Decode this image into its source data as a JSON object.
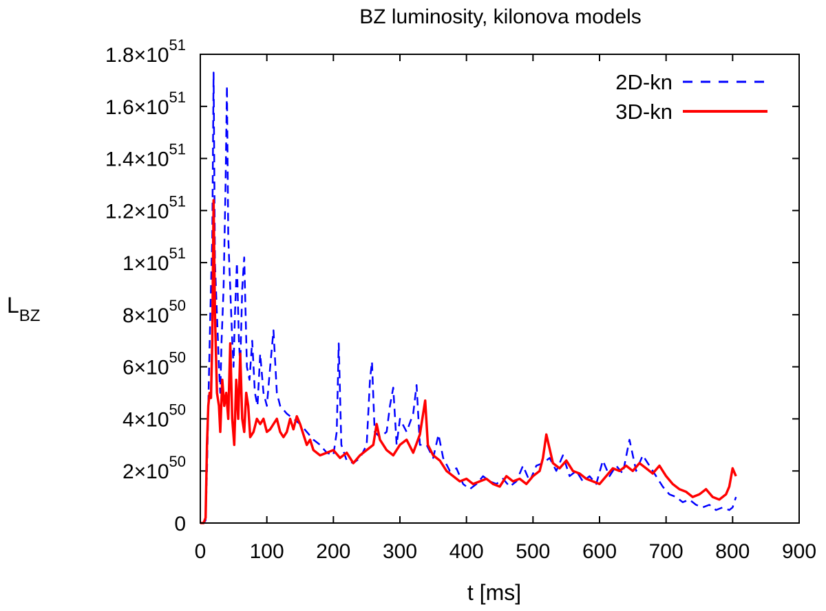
{
  "chart_data": {
    "type": "line",
    "title": "BZ luminosity, kilonova models",
    "xlabel": "t [ms]",
    "ylabel_main": "L",
    "ylabel_sub": "BZ",
    "xlim": [
      0,
      900
    ],
    "ylim": [
      0,
      1.8e+51
    ],
    "xticks": [
      0,
      100,
      200,
      300,
      400,
      500,
      600,
      700,
      800,
      900
    ],
    "xtick_labels": [
      "0",
      "100",
      "200",
      "300",
      "400",
      "500",
      "600",
      "700",
      "800",
      "900"
    ],
    "yticks": [
      {
        "value": 0,
        "mantissa": "0",
        "exponent": ""
      },
      {
        "value": 2e+50,
        "mantissa": "2×10",
        "exponent": "50"
      },
      {
        "value": 4e+50,
        "mantissa": "4×10",
        "exponent": "50"
      },
      {
        "value": 6e+50,
        "mantissa": "6×10",
        "exponent": "50"
      },
      {
        "value": 8e+50,
        "mantissa": "8×10",
        "exponent": "50"
      },
      {
        "value": 1e+51,
        "mantissa": "1×10",
        "exponent": "51"
      },
      {
        "value": 1.2e+51,
        "mantissa": "1.2×10",
        "exponent": "51"
      },
      {
        "value": 1.4e+51,
        "mantissa": "1.4×10",
        "exponent": "51"
      },
      {
        "value": 1.6e+51,
        "mantissa": "1.6×10",
        "exponent": "51"
      },
      {
        "value": 1.8e+51,
        "mantissa": "1.8×10",
        "exponent": "51"
      }
    ],
    "grid": false,
    "legend_position": "top-right",
    "series": [
      {
        "name": "2D-kn",
        "color": "#0000ff",
        "style": "dashed",
        "x": [
          0,
          5,
          8,
          10,
          12,
          15,
          18,
          20,
          22,
          25,
          28,
          30,
          32,
          35,
          38,
          40,
          42,
          45,
          48,
          50,
          52,
          55,
          58,
          60,
          63,
          66,
          70,
          74,
          78,
          82,
          86,
          90,
          95,
          100,
          105,
          110,
          115,
          120,
          130,
          140,
          150,
          160,
          170,
          180,
          190,
          200,
          205,
          208,
          212,
          220,
          230,
          240,
          250,
          255,
          258,
          262,
          270,
          280,
          285,
          290,
          295,
          300,
          310,
          320,
          325,
          330,
          340,
          350,
          358,
          365,
          375,
          385,
          395,
          405,
          415,
          425,
          435,
          445,
          455,
          465,
          475,
          485,
          495,
          505,
          515,
          525,
          535,
          545,
          555,
          565,
          575,
          585,
          595,
          605,
          615,
          625,
          635,
          645,
          655,
          665,
          675,
          685,
          695,
          705,
          715,
          725,
          735,
          745,
          755,
          765,
          775,
          785,
          795,
          800,
          805
        ],
        "y": [
          0,
          0,
          1e+49,
          2e+50,
          4.5e+50,
          8e+50,
          1.1e+51,
          1.73e+51,
          1e+51,
          8e+50,
          6e+50,
          5e+50,
          7e+50,
          9e+50,
          1.3e+51,
          1.68e+51,
          1.1e+51,
          9e+50,
          7e+50,
          6e+50,
          8e+50,
          1e+51,
          7e+50,
          6e+50,
          9e+50,
          1.02e+51,
          6e+50,
          5.5e+50,
          7e+50,
          5e+50,
          4.5e+50,
          6.5e+50,
          5e+50,
          4.5e+50,
          6e+50,
          7.4e+50,
          5e+50,
          4.5e+50,
          4.2e+50,
          4e+50,
          3.8e+50,
          3.5e+50,
          3.2e+50,
          3e+50,
          2.7e+50,
          2.6e+50,
          3.5e+50,
          6.9e+50,
          3e+50,
          2.4e+50,
          2.3e+50,
          2.5e+50,
          3e+50,
          5.5e+50,
          6.2e+50,
          3.5e+50,
          3.3e+50,
          3.5e+50,
          4.5e+50,
          5.2e+50,
          3e+50,
          4e+50,
          3.5e+50,
          4.2e+50,
          5.3e+50,
          3e+50,
          3e+50,
          2.5e+50,
          3.4e+50,
          2.5e+50,
          2e+50,
          2.1e+50,
          1.5e+50,
          1.3e+50,
          1.5e+50,
          1.8e+50,
          1.6e+50,
          1.5e+50,
          1.7e+50,
          1.4e+50,
          1.6e+50,
          2.2e+50,
          1.6e+50,
          2.2e+50,
          2.3e+50,
          2.5e+50,
          2e+50,
          2.6e+50,
          1.8e+50,
          2e+50,
          1.6e+50,
          1.8e+50,
          1.5e+50,
          2.4e+50,
          1.8e+50,
          2.2e+50,
          1.9e+50,
          3.2e+50,
          2e+50,
          2.6e+50,
          2.2e+50,
          1.8e+50,
          1.4e+50,
          1.1e+50,
          1e+50,
          8e+49,
          9e+49,
          7e+49,
          6e+49,
          7e+49,
          5e+49,
          6e+49,
          5e+49,
          6e+49,
          1e+50
        ]
      },
      {
        "name": "3D-kn",
        "color": "#ff0000",
        "style": "solid",
        "x": [
          0,
          5,
          8,
          10,
          12,
          14,
          16,
          18,
          20,
          22,
          25,
          28,
          30,
          33,
          36,
          39,
          42,
          45,
          48,
          51,
          54,
          57,
          60,
          63,
          66,
          69,
          72,
          75,
          80,
          85,
          90,
          95,
          100,
          105,
          110,
          115,
          120,
          125,
          130,
          135,
          140,
          145,
          150,
          155,
          160,
          165,
          170,
          180,
          190,
          200,
          210,
          220,
          230,
          240,
          250,
          260,
          265,
          270,
          280,
          290,
          300,
          310,
          320,
          330,
          338,
          342,
          350,
          360,
          370,
          380,
          390,
          400,
          410,
          420,
          430,
          440,
          450,
          460,
          470,
          480,
          490,
          500,
          510,
          515,
          520,
          530,
          540,
          550,
          560,
          570,
          580,
          590,
          600,
          610,
          620,
          630,
          640,
          650,
          660,
          670,
          680,
          690,
          700,
          710,
          720,
          730,
          740,
          750,
          760,
          770,
          780,
          790,
          795,
          800,
          805
        ],
        "y": [
          0,
          0,
          2e+49,
          3e+50,
          4.5e+50,
          5e+50,
          4.8e+50,
          7e+50,
          1.24e+51,
          8e+50,
          5e+50,
          4.5e+50,
          3.5e+50,
          5.5e+50,
          4.5e+50,
          5e+50,
          4e+50,
          6.9e+50,
          4e+50,
          3e+50,
          5.5e+50,
          4e+50,
          6.5e+50,
          4e+50,
          3.5e+50,
          5e+50,
          4.5e+50,
          3.3e+50,
          3.5e+50,
          4e+50,
          3.8e+50,
          4e+50,
          3.5e+50,
          3.6e+50,
          3.8e+50,
          4e+50,
          3.5e+50,
          3.3e+50,
          3.5e+50,
          4e+50,
          3.6e+50,
          4.1e+50,
          3.8e+50,
          3.4e+50,
          3e+50,
          3.2e+50,
          2.8e+50,
          2.6e+50,
          2.7e+50,
          2.8e+50,
          2.5e+50,
          2.7e+50,
          2.3e+50,
          2.6e+50,
          2.8e+50,
          3e+50,
          3.8e+50,
          3.2e+50,
          2.8e+50,
          2.6e+50,
          3e+50,
          3.2e+50,
          2.7e+50,
          3.4e+50,
          4.7e+50,
          3e+50,
          2.6e+50,
          2.4e+50,
          2e+50,
          1.8e+50,
          1.6e+50,
          1.7e+50,
          1.5e+50,
          1.6e+50,
          1.7e+50,
          1.5e+50,
          1.4e+50,
          1.8e+50,
          1.6e+50,
          1.7e+50,
          1.5e+50,
          1.8e+50,
          2e+50,
          2.5e+50,
          3.4e+50,
          2.3e+50,
          2.1e+50,
          2.4e+50,
          2e+50,
          1.9e+50,
          1.7e+50,
          1.6e+50,
          1.5e+50,
          1.8e+50,
          2.1e+50,
          2e+50,
          2.2e+50,
          2e+50,
          2.3e+50,
          2.1e+50,
          1.9e+50,
          2.2e+50,
          1.8e+50,
          1.5e+50,
          1.3e+50,
          1.2e+50,
          1e+50,
          1.1e+50,
          1.3e+50,
          1e+50,
          9e+49,
          1.1e+50,
          1.4e+50,
          2.1e+50,
          1.8e+50
        ]
      }
    ]
  }
}
